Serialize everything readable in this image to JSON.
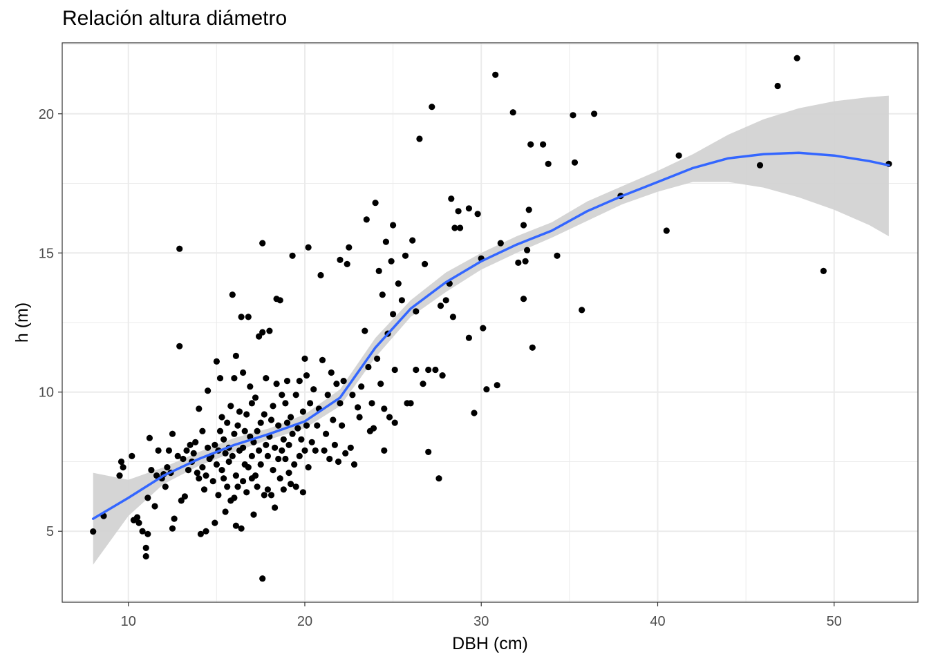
{
  "chart_data": {
    "type": "scatter",
    "title": "Relación altura diámetro",
    "xlabel": "DBH (cm)",
    "ylabel": "h (m)",
    "xlim": [
      6.25,
      54.75
    ],
    "ylim": [
      2.45,
      22.55
    ],
    "x_ticks": [
      10,
      20,
      30,
      40,
      50
    ],
    "y_ticks": [
      5,
      10,
      15,
      20
    ],
    "grid": true,
    "colors": {
      "points": "#000000",
      "smooth": "#3366FF",
      "ribbon": "#d3d3d3",
      "grid": "#ebebeb",
      "panel_border": "#333333"
    },
    "points": [
      [
        8.0,
        4.99
      ],
      [
        8.6,
        5.55
      ],
      [
        9.5,
        7.0
      ],
      [
        9.6,
        7.5
      ],
      [
        9.7,
        7.3
      ],
      [
        10.2,
        7.7
      ],
      [
        10.3,
        5.4
      ],
      [
        10.5,
        5.5
      ],
      [
        10.6,
        5.3
      ],
      [
        10.8,
        5.0
      ],
      [
        11.0,
        4.4
      ],
      [
        11.0,
        4.1
      ],
      [
        11.1,
        4.9
      ],
      [
        11.1,
        6.2
      ],
      [
        11.2,
        8.35
      ],
      [
        11.3,
        7.2
      ],
      [
        11.5,
        5.9
      ],
      [
        11.6,
        7.0
      ],
      [
        11.7,
        7.9
      ],
      [
        11.9,
        6.9
      ],
      [
        12.0,
        7.05
      ],
      [
        12.1,
        6.6
      ],
      [
        12.2,
        7.3
      ],
      [
        12.3,
        7.9
      ],
      [
        12.4,
        7.1
      ],
      [
        12.5,
        5.1
      ],
      [
        12.5,
        8.5
      ],
      [
        12.6,
        5.45
      ],
      [
        12.8,
        7.7
      ],
      [
        12.9,
        15.15
      ],
      [
        12.9,
        11.65
      ],
      [
        13.0,
        6.1
      ],
      [
        13.1,
        7.6
      ],
      [
        13.2,
        6.25
      ],
      [
        13.3,
        7.9
      ],
      [
        13.4,
        7.2
      ],
      [
        13.5,
        8.1
      ],
      [
        13.6,
        7.5
      ],
      [
        13.7,
        7.8
      ],
      [
        13.8,
        8.2
      ],
      [
        13.9,
        7.1
      ],
      [
        14.0,
        9.4
      ],
      [
        14.0,
        6.9
      ],
      [
        14.1,
        4.9
      ],
      [
        14.2,
        7.3
      ],
      [
        14.2,
        8.6
      ],
      [
        14.3,
        6.5
      ],
      [
        14.4,
        5.0
      ],
      [
        14.4,
        7.0
      ],
      [
        14.5,
        8.0
      ],
      [
        14.5,
        10.05
      ],
      [
        14.6,
        7.6
      ],
      [
        14.7,
        7.7
      ],
      [
        14.8,
        6.8
      ],
      [
        14.9,
        5.3
      ],
      [
        14.9,
        8.1
      ],
      [
        15.0,
        7.4
      ],
      [
        15.0,
        11.1
      ],
      [
        15.1,
        7.9
      ],
      [
        15.1,
        6.3
      ],
      [
        15.2,
        8.6
      ],
      [
        15.2,
        10.5
      ],
      [
        15.3,
        7.2
      ],
      [
        15.3,
        9.1
      ],
      [
        15.4,
        6.9
      ],
      [
        15.4,
        8.3
      ],
      [
        15.5,
        5.7
      ],
      [
        15.5,
        7.8
      ],
      [
        15.6,
        8.9
      ],
      [
        15.6,
        6.6
      ],
      [
        15.7,
        7.5
      ],
      [
        15.7,
        8.0
      ],
      [
        15.8,
        6.1
      ],
      [
        15.8,
        9.5
      ],
      [
        15.9,
        7.7
      ],
      [
        15.9,
        13.5
      ],
      [
        16.0,
        10.5
      ],
      [
        16.0,
        6.2
      ],
      [
        16.0,
        8.5
      ],
      [
        16.1,
        5.2
      ],
      [
        16.1,
        7.0
      ],
      [
        16.1,
        11.3
      ],
      [
        16.2,
        8.8
      ],
      [
        16.2,
        6.6
      ],
      [
        16.3,
        7.9
      ],
      [
        16.3,
        9.3
      ],
      [
        16.4,
        5.1
      ],
      [
        16.4,
        12.7
      ],
      [
        16.5,
        8.0
      ],
      [
        16.5,
        6.8
      ],
      [
        16.5,
        10.7
      ],
      [
        16.6,
        7.4
      ],
      [
        16.6,
        8.6
      ],
      [
        16.7,
        9.2
      ],
      [
        16.7,
        6.4
      ],
      [
        16.8,
        12.7
      ],
      [
        16.8,
        7.3
      ],
      [
        16.9,
        8.4
      ],
      [
        16.9,
        10.2
      ],
      [
        17.0,
        6.9
      ],
      [
        17.0,
        7.7
      ],
      [
        17.0,
        9.6
      ],
      [
        17.1,
        8.2
      ],
      [
        17.1,
        5.6
      ],
      [
        17.2,
        7.0
      ],
      [
        17.2,
        9.8
      ],
      [
        17.3,
        8.6
      ],
      [
        17.3,
        6.6
      ],
      [
        17.4,
        7.9
      ],
      [
        17.4,
        12.0
      ],
      [
        17.5,
        8.9
      ],
      [
        17.5,
        7.4
      ],
      [
        17.6,
        15.35
      ],
      [
        17.6,
        12.15
      ],
      [
        17.6,
        3.3
      ],
      [
        17.7,
        6.3
      ],
      [
        17.7,
        9.2
      ],
      [
        17.8,
        8.1
      ],
      [
        17.8,
        10.5
      ],
      [
        17.9,
        6.5
      ],
      [
        17.9,
        7.7
      ],
      [
        18.0,
        8.4
      ],
      [
        18.0,
        12.2
      ],
      [
        18.1,
        9.0
      ],
      [
        18.1,
        6.3
      ],
      [
        18.2,
        7.2
      ],
      [
        18.2,
        9.5
      ],
      [
        18.3,
        8.0
      ],
      [
        18.3,
        5.85
      ],
      [
        18.4,
        10.3
      ],
      [
        18.4,
        13.35
      ],
      [
        18.5,
        7.6
      ],
      [
        18.5,
        8.8
      ],
      [
        18.6,
        13.3
      ],
      [
        18.6,
        6.9
      ],
      [
        18.7,
        9.9
      ],
      [
        18.7,
        7.9
      ],
      [
        18.8,
        8.3
      ],
      [
        18.8,
        6.5
      ],
      [
        18.9,
        9.6
      ],
      [
        18.9,
        7.6
      ],
      [
        19.0,
        8.9
      ],
      [
        19.0,
        10.4
      ],
      [
        19.1,
        7.1
      ],
      [
        19.1,
        8.1
      ],
      [
        19.2,
        9.1
      ],
      [
        19.2,
        6.7
      ],
      [
        19.3,
        14.9
      ],
      [
        19.3,
        8.5
      ],
      [
        19.4,
        7.4
      ],
      [
        19.5,
        9.9
      ],
      [
        19.5,
        6.6
      ],
      [
        19.6,
        8.7
      ],
      [
        19.7,
        10.4
      ],
      [
        19.7,
        7.7
      ],
      [
        19.8,
        8.3
      ],
      [
        19.9,
        6.4
      ],
      [
        19.9,
        9.3
      ],
      [
        20.0,
        11.2
      ],
      [
        20.0,
        7.9
      ],
      [
        20.1,
        10.6
      ],
      [
        20.1,
        8.8
      ],
      [
        20.2,
        15.2
      ],
      [
        20.2,
        7.3
      ],
      [
        20.3,
        9.6
      ],
      [
        20.4,
        8.2
      ],
      [
        20.5,
        10.1
      ],
      [
        20.6,
        7.9
      ],
      [
        20.7,
        8.8
      ],
      [
        20.8,
        9.4
      ],
      [
        20.9,
        14.2
      ],
      [
        21.0,
        11.15
      ],
      [
        21.1,
        7.9
      ],
      [
        21.2,
        8.5
      ],
      [
        21.3,
        9.9
      ],
      [
        21.4,
        7.6
      ],
      [
        21.5,
        10.7
      ],
      [
        21.6,
        9.0
      ],
      [
        21.7,
        8.1
      ],
      [
        21.8,
        10.3
      ],
      [
        21.9,
        7.5
      ],
      [
        22.0,
        9.6
      ],
      [
        22.0,
        14.75
      ],
      [
        22.1,
        8.8
      ],
      [
        22.2,
        10.4
      ],
      [
        22.3,
        7.8
      ],
      [
        22.4,
        14.6
      ],
      [
        22.5,
        15.2
      ],
      [
        22.6,
        8.0
      ],
      [
        22.7,
        9.9
      ],
      [
        22.8,
        7.4
      ],
      [
        23.0,
        9.45
      ],
      [
        23.1,
        9.1
      ],
      [
        23.2,
        10.2
      ],
      [
        23.4,
        12.2
      ],
      [
        23.5,
        16.2
      ],
      [
        23.6,
        10.9
      ],
      [
        23.7,
        8.6
      ],
      [
        23.8,
        9.6
      ],
      [
        23.9,
        8.7
      ],
      [
        24.0,
        16.8
      ],
      [
        24.1,
        11.2
      ],
      [
        24.2,
        14.35
      ],
      [
        24.3,
        10.3
      ],
      [
        24.4,
        13.5
      ],
      [
        24.5,
        9.4
      ],
      [
        24.5,
        7.9
      ],
      [
        24.6,
        15.4
      ],
      [
        24.7,
        12.1
      ],
      [
        24.8,
        9.1
      ],
      [
        24.9,
        14.7
      ],
      [
        25.0,
        16.0
      ],
      [
        25.0,
        12.8
      ],
      [
        25.1,
        10.8
      ],
      [
        25.1,
        8.9
      ],
      [
        25.3,
        13.9
      ],
      [
        25.5,
        13.3
      ],
      [
        25.7,
        14.9
      ],
      [
        25.8,
        9.6
      ],
      [
        26.0,
        9.6
      ],
      [
        26.1,
        15.45
      ],
      [
        26.3,
        10.8
      ],
      [
        26.3,
        12.9
      ],
      [
        26.5,
        19.1
      ],
      [
        26.7,
        10.3
      ],
      [
        26.8,
        14.6
      ],
      [
        27.0,
        7.85
      ],
      [
        27.0,
        10.8
      ],
      [
        27.2,
        20.25
      ],
      [
        27.4,
        10.8
      ],
      [
        27.6,
        6.9
      ],
      [
        27.7,
        13.1
      ],
      [
        27.8,
        10.6
      ],
      [
        28.0,
        13.3
      ],
      [
        28.2,
        13.9
      ],
      [
        28.3,
        16.95
      ],
      [
        28.4,
        12.7
      ],
      [
        28.5,
        15.9
      ],
      [
        28.7,
        16.5
      ],
      [
        28.8,
        15.9
      ],
      [
        29.3,
        11.95
      ],
      [
        29.3,
        16.6
      ],
      [
        29.6,
        9.25
      ],
      [
        29.8,
        16.4
      ],
      [
        30.0,
        14.8
      ],
      [
        30.1,
        12.3
      ],
      [
        30.3,
        10.1
      ],
      [
        30.8,
        21.4
      ],
      [
        30.9,
        10.25
      ],
      [
        31.1,
        15.35
      ],
      [
        31.8,
        20.05
      ],
      [
        32.1,
        14.65
      ],
      [
        32.4,
        16.0
      ],
      [
        32.4,
        13.35
      ],
      [
        32.5,
        14.7
      ],
      [
        32.6,
        15.1
      ],
      [
        32.7,
        16.55
      ],
      [
        32.8,
        18.9
      ],
      [
        32.9,
        11.6
      ],
      [
        33.5,
        18.9
      ],
      [
        33.8,
        18.2
      ],
      [
        34.3,
        14.9
      ],
      [
        35.2,
        19.95
      ],
      [
        35.3,
        18.25
      ],
      [
        35.7,
        12.95
      ],
      [
        36.4,
        20.0
      ],
      [
        37.9,
        17.05
      ],
      [
        40.5,
        15.8
      ],
      [
        41.2,
        18.5
      ],
      [
        45.8,
        18.15
      ],
      [
        46.8,
        21.0
      ],
      [
        47.9,
        22.0
      ],
      [
        49.4,
        14.35
      ],
      [
        53.1,
        18.2
      ]
    ],
    "smooth": {
      "x": [
        8.0,
        10.0,
        12.0,
        14.0,
        16.0,
        18.0,
        20.0,
        22.0,
        24.0,
        26.0,
        28.0,
        30.0,
        32.0,
        34.0,
        36.0,
        38.0,
        40.0,
        42.0,
        44.0,
        46.0,
        48.0,
        50.0,
        52.0,
        53.1
      ],
      "y": [
        5.45,
        6.2,
        7.0,
        7.6,
        8.1,
        8.5,
        8.95,
        9.8,
        11.6,
        13.0,
        13.95,
        14.7,
        15.3,
        15.8,
        16.5,
        17.05,
        17.55,
        18.05,
        18.4,
        18.55,
        18.6,
        18.5,
        18.3,
        18.15
      ],
      "lower": [
        3.8,
        5.55,
        6.7,
        7.35,
        7.85,
        8.3,
        8.7,
        9.5,
        11.25,
        12.7,
        13.6,
        14.4,
        15.0,
        15.55,
        16.15,
        16.75,
        17.2,
        17.55,
        17.55,
        17.35,
        17.0,
        16.55,
        16.0,
        15.6
      ],
      "upper": [
        7.1,
        6.85,
        7.3,
        7.85,
        8.35,
        8.7,
        9.2,
        10.1,
        11.95,
        13.3,
        14.3,
        15.0,
        15.6,
        16.1,
        16.85,
        17.4,
        17.95,
        18.55,
        19.25,
        19.8,
        20.2,
        20.45,
        20.6,
        20.65
      ]
    }
  }
}
